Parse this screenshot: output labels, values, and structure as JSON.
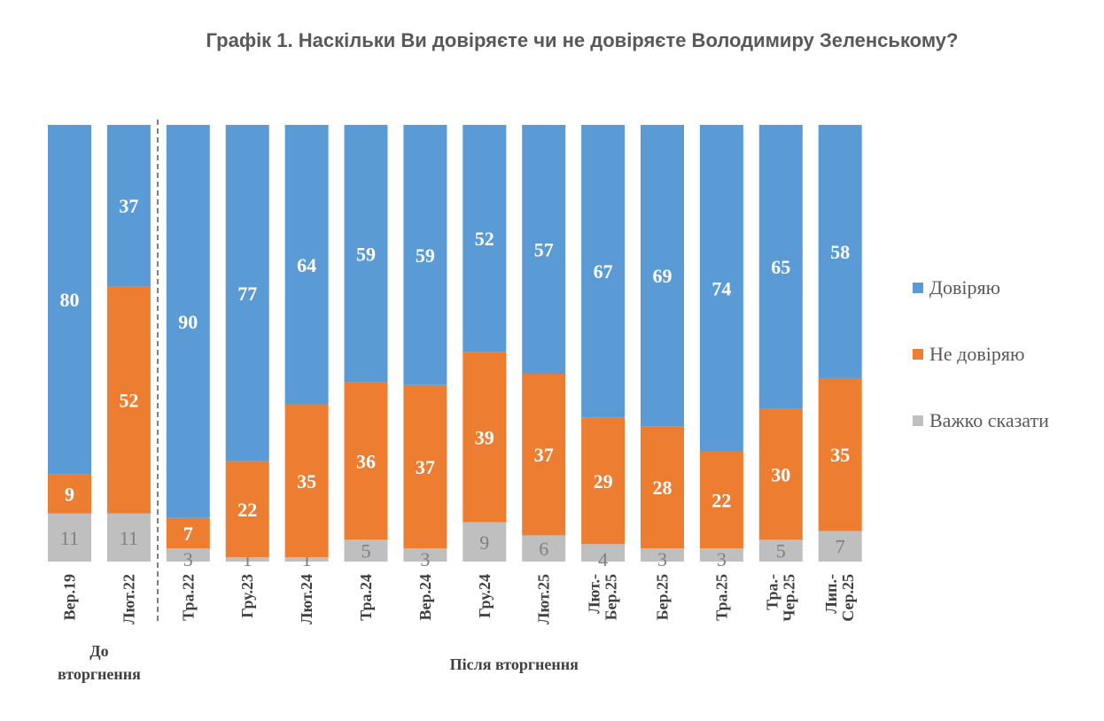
{
  "chart_data": {
    "type": "bar",
    "stacked": true,
    "title": "Графік 1. Наскільки Ви довіряєте чи не довіряєте Володимиру Зеленському?",
    "categories": [
      [
        "Вер.19"
      ],
      [
        "Лют.22"
      ],
      [
        "Тра.22"
      ],
      [
        "Гру.23"
      ],
      [
        "Лют.24"
      ],
      [
        "Тра.24"
      ],
      [
        "Вер.24"
      ],
      [
        "Гру.24"
      ],
      [
        "Лют.25"
      ],
      [
        "Лют.-",
        "Бер.25"
      ],
      [
        "Бер.25"
      ],
      [
        "Тра.25"
      ],
      [
        "Тра.-",
        "Чер.25"
      ],
      [
        "Лип.-",
        "Сер.25"
      ]
    ],
    "groups": [
      {
        "label": "До вторгнення",
        "lines": [
          "До",
          "вторгнення"
        ],
        "from": 0,
        "to": 1
      },
      {
        "label": "Після вторгнення",
        "lines": [
          "Після вторгнення"
        ],
        "from": 2,
        "to": 13
      }
    ],
    "series": [
      {
        "name": "Довіряю",
        "color": "#5b9bd5",
        "values": [
          80,
          37,
          90,
          77,
          64,
          59,
          59,
          52,
          57,
          67,
          69,
          74,
          65,
          58
        ]
      },
      {
        "name": "Не довіряю",
        "color": "#ed7d31",
        "values": [
          9,
          52,
          7,
          22,
          35,
          36,
          37,
          39,
          37,
          29,
          28,
          22,
          30,
          35
        ]
      },
      {
        "name": "Важко сказати",
        "color": "#bfbfbf",
        "values": [
          11,
          11,
          3,
          1,
          1,
          5,
          3,
          9,
          6,
          4,
          3,
          3,
          5,
          7
        ]
      }
    ],
    "ylim": [
      0,
      100
    ],
    "grid": false,
    "legend": "right"
  }
}
